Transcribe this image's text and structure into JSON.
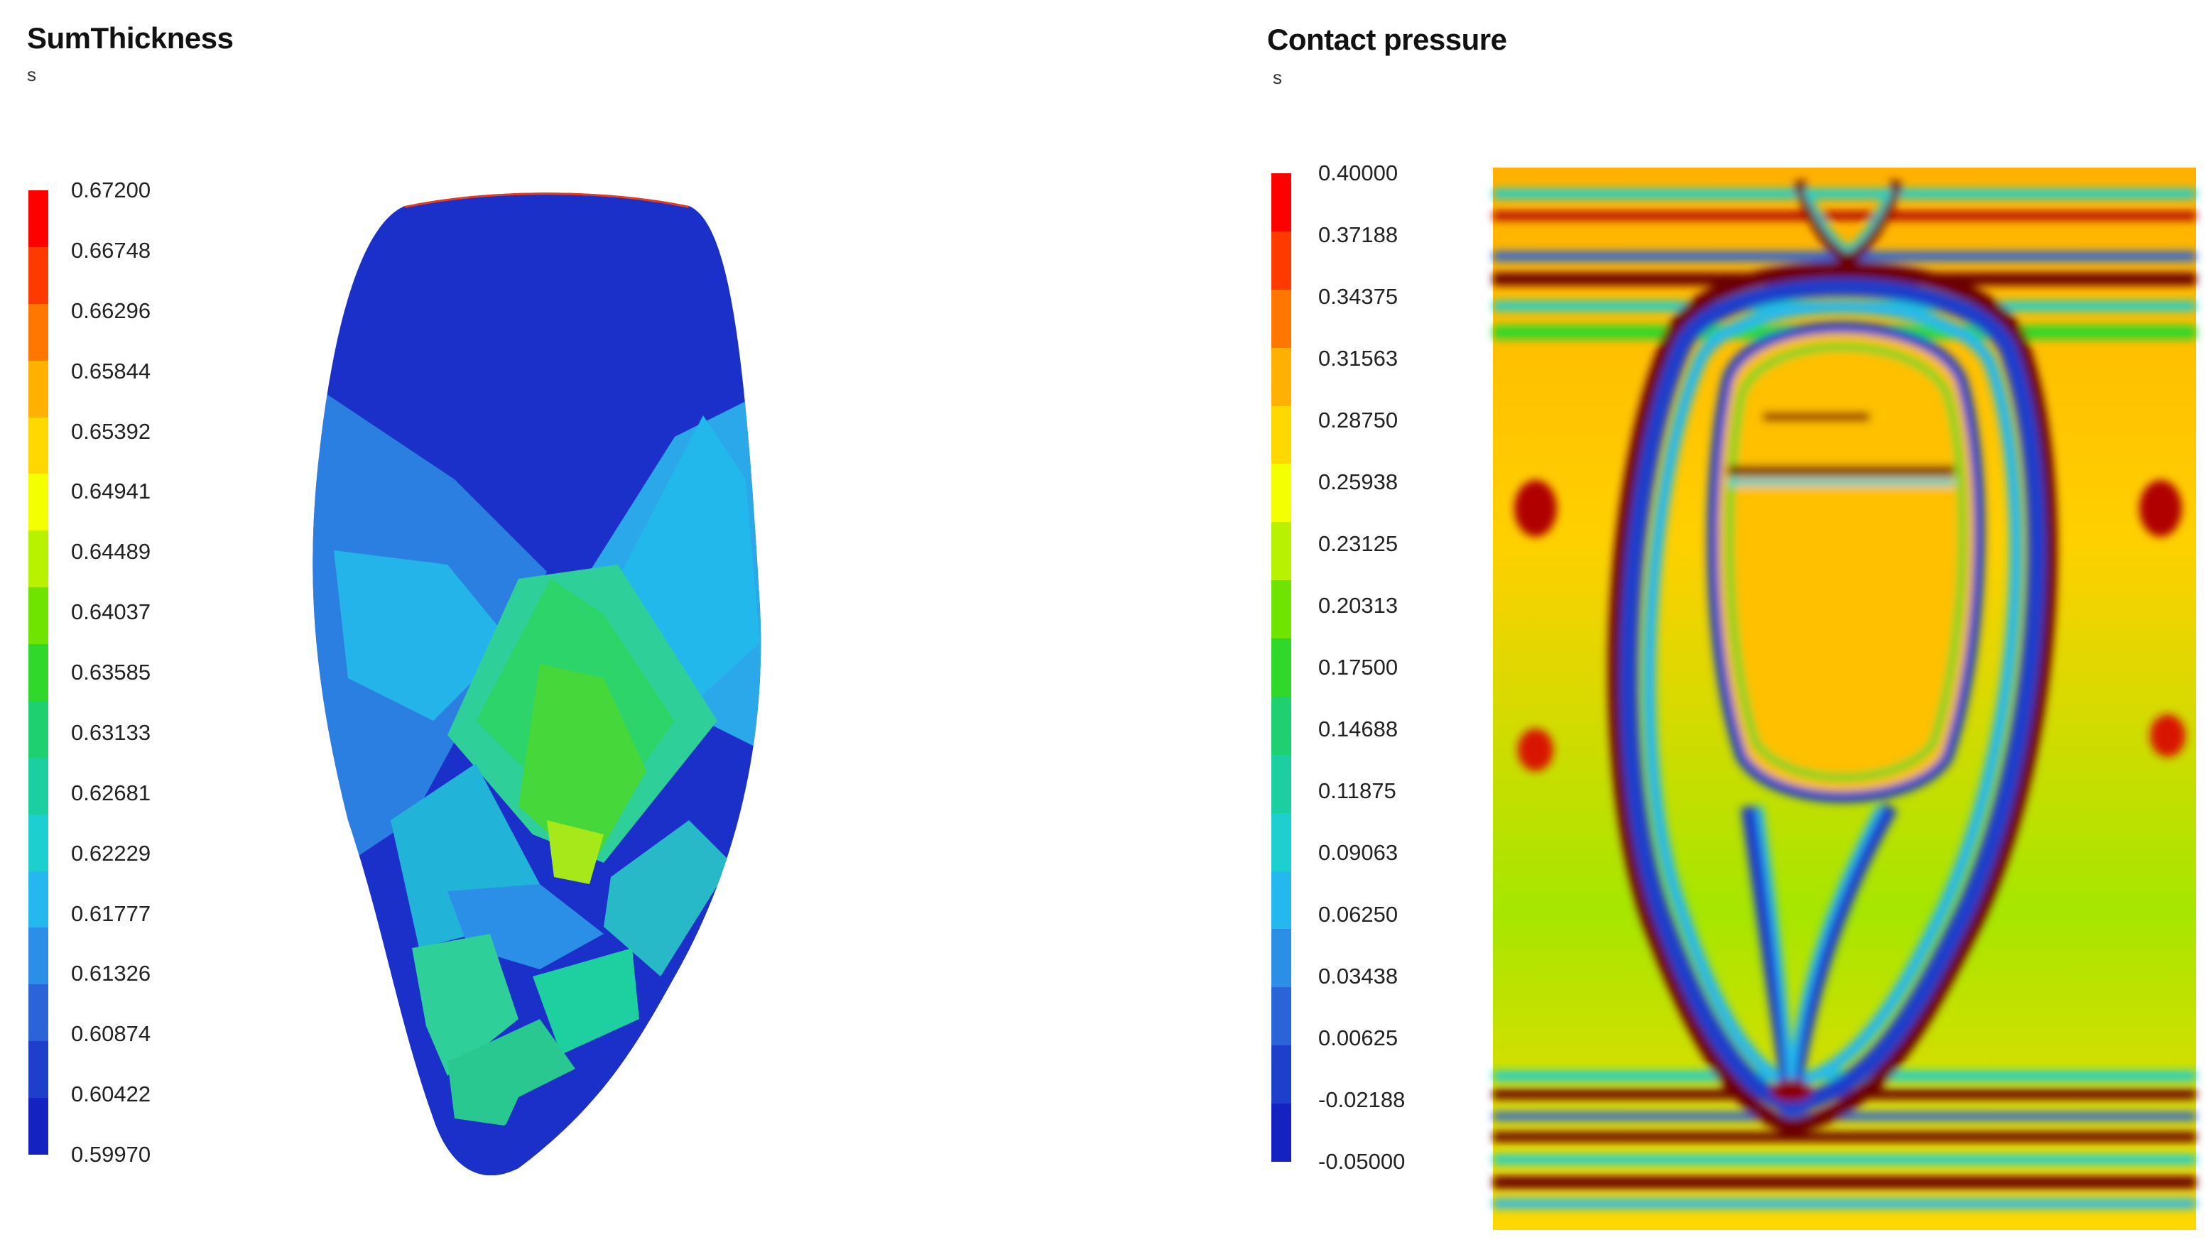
{
  "panels": [
    {
      "title": "SumThickness",
      "subtitle": "s",
      "legend_ticks": [
        "0.67200",
        "0.66748",
        "0.66296",
        "0.65844",
        "0.65392",
        "0.64941",
        "0.64489",
        "0.64037",
        "0.63585",
        "0.63133",
        "0.62681",
        "0.62229",
        "0.61777",
        "0.61326",
        "0.60874",
        "0.60422",
        "0.59970"
      ]
    },
    {
      "title": "Contact pressure",
      "subtitle": "s",
      "legend_ticks": [
        "0.40000",
        "0.37188",
        "0.34375",
        "0.31563",
        "0.28750",
        "0.25938",
        "0.23125",
        "0.20313",
        "0.17500",
        "0.14688",
        "0.11875",
        "0.09063",
        "0.06250",
        "0.03438",
        "0.00625",
        "-0.02188",
        "-0.05000"
      ]
    }
  ],
  "colormap": [
    "#ff0000",
    "#ff3a00",
    "#ff7700",
    "#ffb000",
    "#ffd800",
    "#f4ff00",
    "#b8f200",
    "#6fe400",
    "#2fd82a",
    "#1ed070",
    "#1ccfa0",
    "#1ecfd0",
    "#25b8ee",
    "#2b8fe8",
    "#2a64d8",
    "#1e3ecc",
    "#1422c2"
  ],
  "chart_data": [
    {
      "type": "heatmap",
      "title": "SumThickness",
      "unit": "s",
      "colorbar": {
        "min": 0.5997,
        "max": 0.672,
        "ticks": [
          0.672,
          0.66748,
          0.66296,
          0.65844,
          0.65392,
          0.64941,
          0.64489,
          0.64037,
          0.63585,
          0.63133,
          0.62681,
          0.62229,
          0.61777,
          0.61326,
          0.60874,
          0.60422,
          0.5997
        ]
      }
    },
    {
      "type": "heatmap",
      "title": "Contact pressure",
      "unit": "s",
      "colorbar": {
        "min": -0.05,
        "max": 0.4,
        "ticks": [
          0.4,
          0.37188,
          0.34375,
          0.31563,
          0.2875,
          0.25938,
          0.23125,
          0.20313,
          0.175,
          0.14688,
          0.11875,
          0.09063,
          0.0625,
          0.03438,
          0.00625,
          -0.02188,
          -0.05
        ]
      }
    }
  ]
}
